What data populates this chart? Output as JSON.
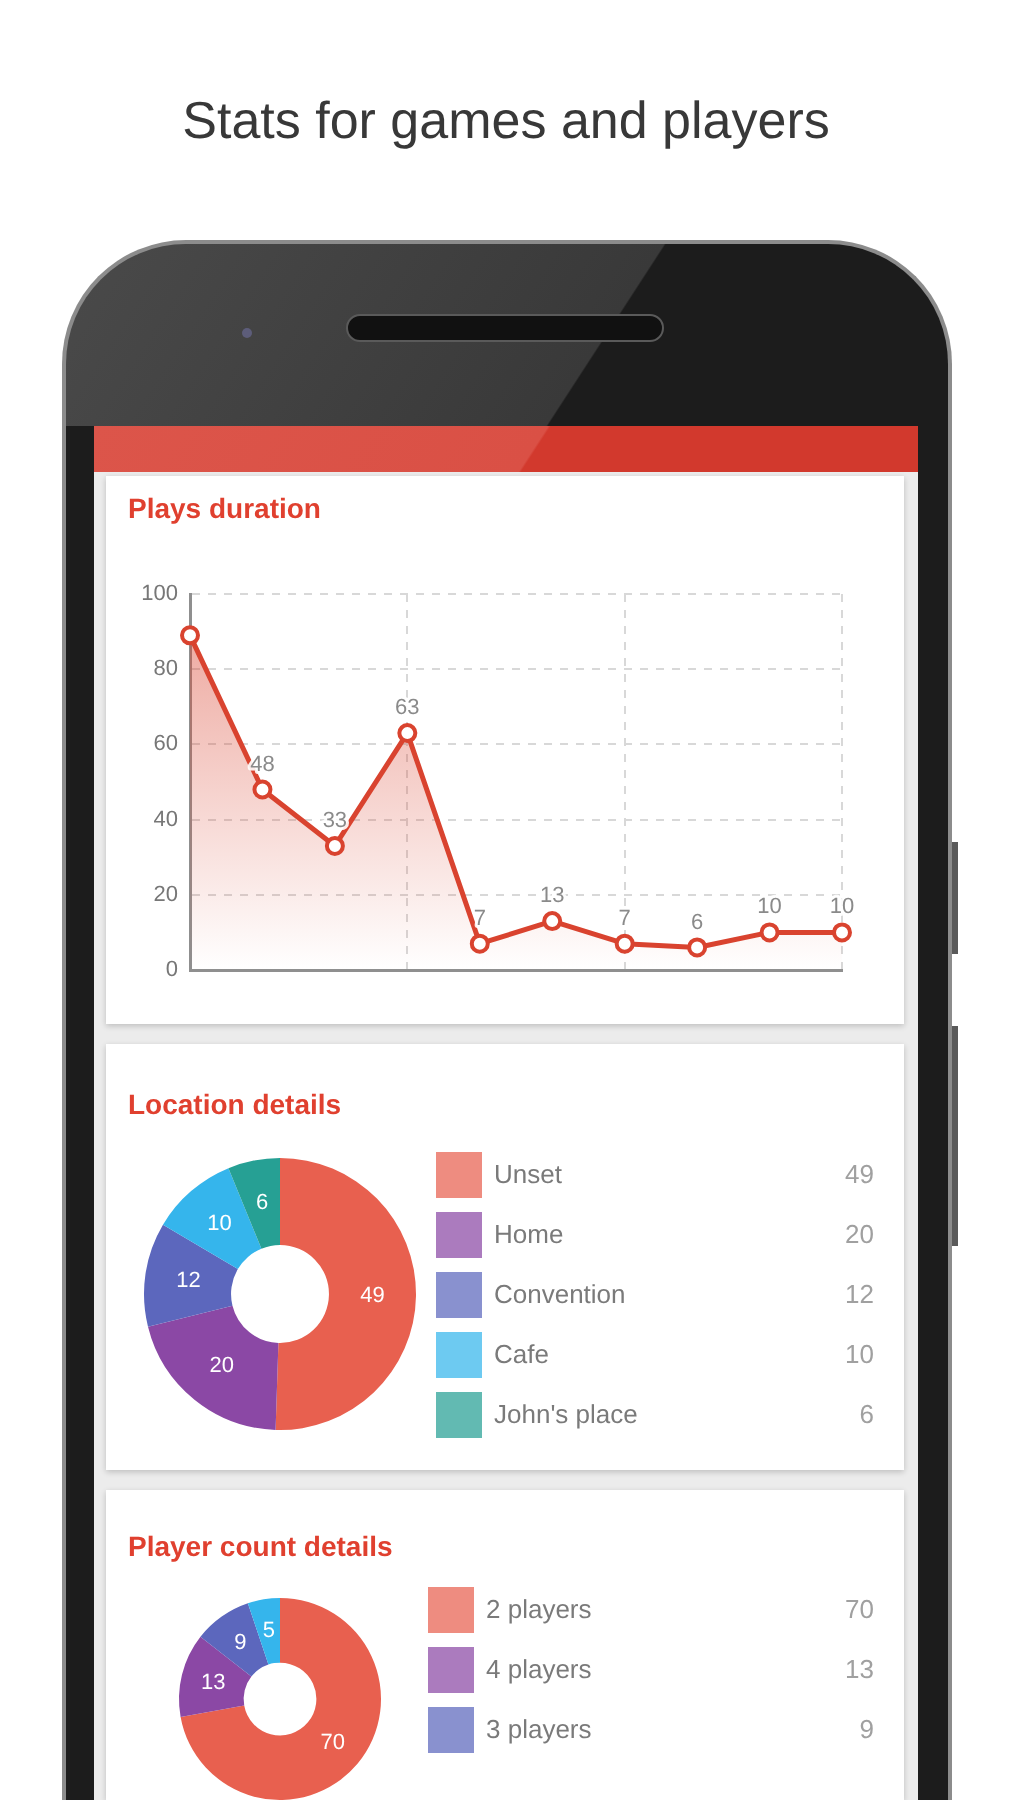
{
  "chart_data": [
    {
      "type": "other",
      "title": "Stats for games and players"
    },
    {
      "type": "area",
      "title": "Plays duration",
      "categories": [
        null,
        null,
        null,
        null,
        null,
        null,
        null,
        null,
        null,
        null
      ],
      "values": [
        89,
        48,
        33,
        63,
        7,
        13,
        7,
        6,
        10,
        10
      ],
      "color": "#d9432f",
      "value_labels": [
        null,
        "48",
        "33",
        "63",
        "7",
        "13",
        "7",
        "6",
        "10",
        "10"
      ],
      "ylim": [
        0,
        100
      ],
      "yticks": [
        0,
        20,
        40,
        60,
        80,
        100
      ],
      "grid": true,
      "marker": "circle",
      "tick_labels": "y"
    },
    {
      "type": "donut",
      "title": "Location details",
      "categories": [
        "Unset",
        "Home",
        "Convention",
        "Cafe",
        "John's place"
      ],
      "values": [
        49,
        20,
        12,
        10,
        6
      ],
      "colors": [
        "#e8604f",
        "#8b48a5",
        "#5c67bd",
        "#35b5ec",
        "#26a094"
      ],
      "data_labels": true,
      "legend": "right",
      "annotations": [
        "49",
        "20",
        "12",
        "10",
        "6"
      ]
    },
    {
      "type": "donut",
      "title": "Player count details",
      "categories": [
        "2 players",
        "4 players",
        "3 players",
        null
      ],
      "values": [
        70,
        13,
        9,
        5
      ],
      "colors": [
        "#e8604f",
        "#8b48a5",
        "#5c67bd",
        "#35b5ec"
      ],
      "data_labels": true,
      "legend": "right",
      "annotations": [
        "70",
        "13",
        "9"
      ]
    }
  ]
}
